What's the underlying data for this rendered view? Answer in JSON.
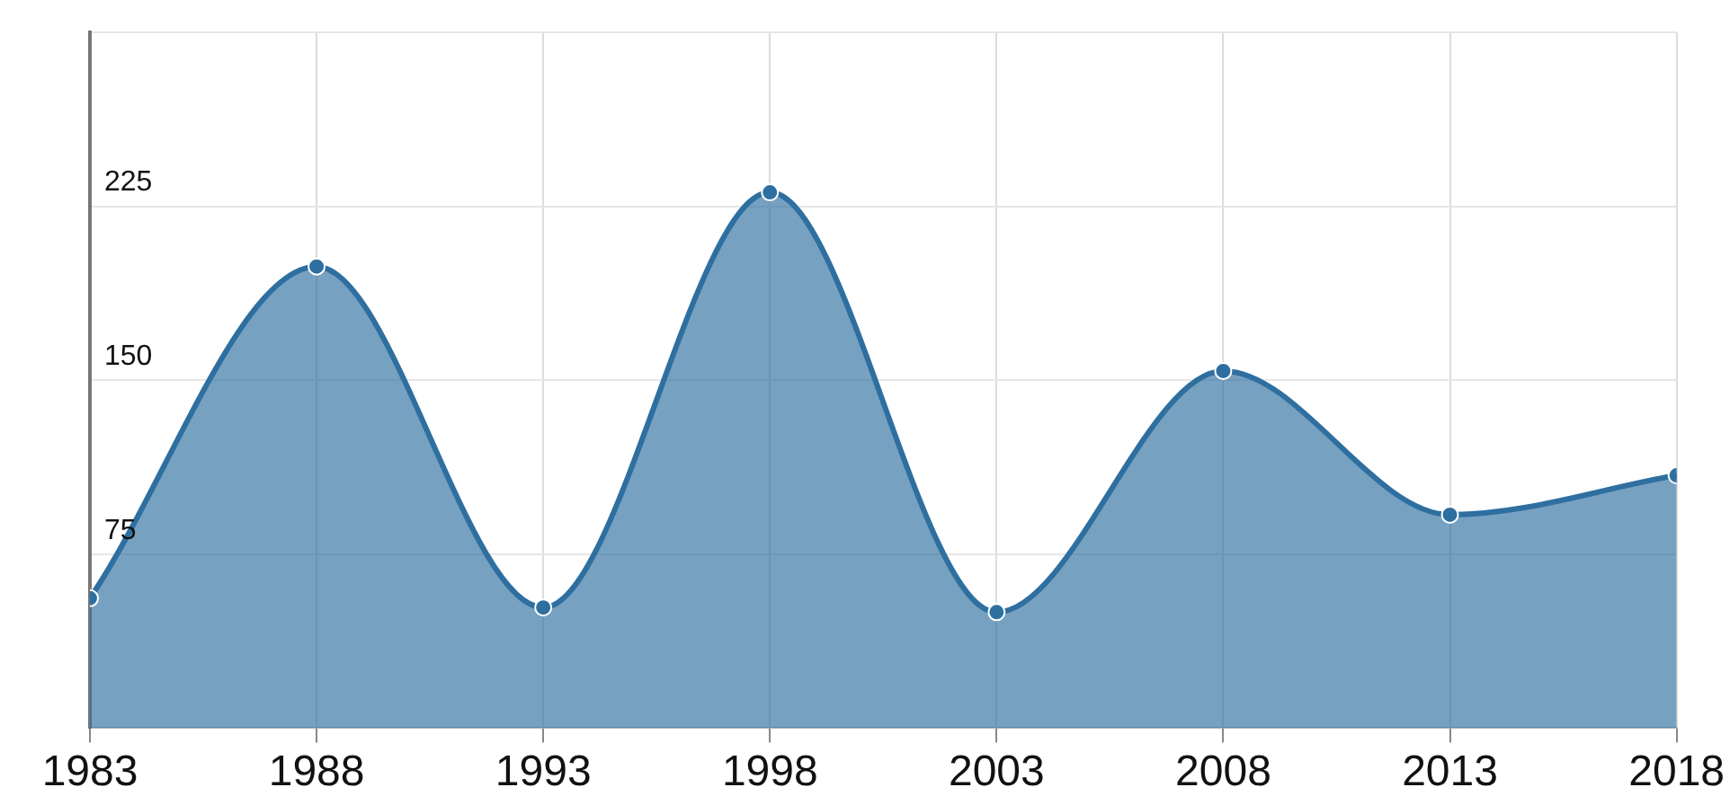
{
  "chart_data": {
    "type": "area",
    "x": [
      1983,
      1988,
      1993,
      1998,
      2003,
      2008,
      2013,
      2018
    ],
    "series": [
      {
        "color": "#2e6fa0",
        "values": [
          56,
          199,
          52,
          231,
          50,
          154,
          92,
          109
        ]
      }
    ],
    "xlim": [
      1983,
      2018
    ],
    "xticks": [
      1983,
      1988,
      1993,
      1998,
      2003,
      2008,
      2013,
      2018
    ],
    "ylim": [
      0,
      300
    ],
    "yticks": [
      {
        "value": 0,
        "label": null
      },
      75,
      150,
      225,
      {
        "value": 300,
        "label": null
      }
    ],
    "grid": true,
    "legend": false,
    "marker": "circle",
    "line_style": "solid"
  }
}
